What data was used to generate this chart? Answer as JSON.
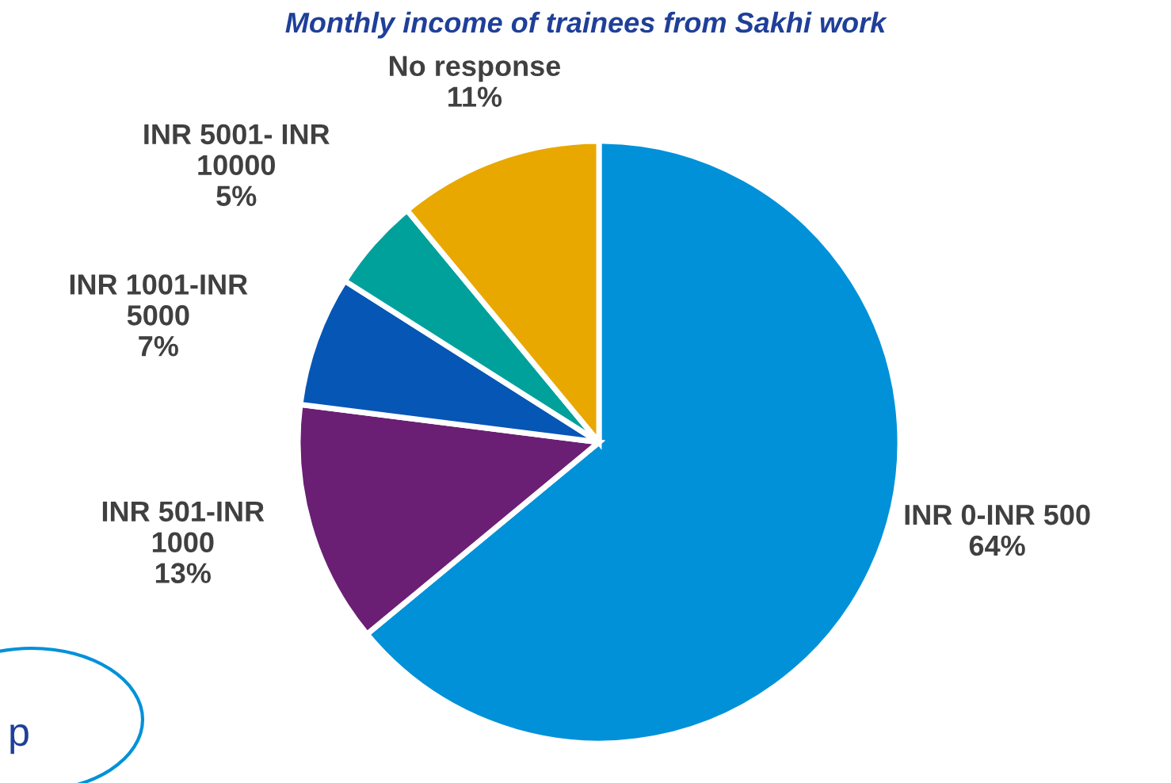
{
  "chart_data": {
    "type": "pie",
    "title": "Monthly income of trainees from Sakhi work",
    "categories": [
      "INR 0-INR 500",
      "INR 501-INR\n1000",
      "INR 1001-INR\n5000",
      "INR 5001- INR\n10000",
      "No response"
    ],
    "values": [
      64,
      13,
      7,
      5,
      11
    ],
    "colors": [
      "#0091d9",
      "#6a1f74",
      "#0656b5",
      "#00a19b",
      "#e9a800"
    ],
    "value_labels": [
      "64%",
      "13%",
      "7%",
      "5%",
      "11%"
    ],
    "annotations": [
      "p"
    ]
  }
}
